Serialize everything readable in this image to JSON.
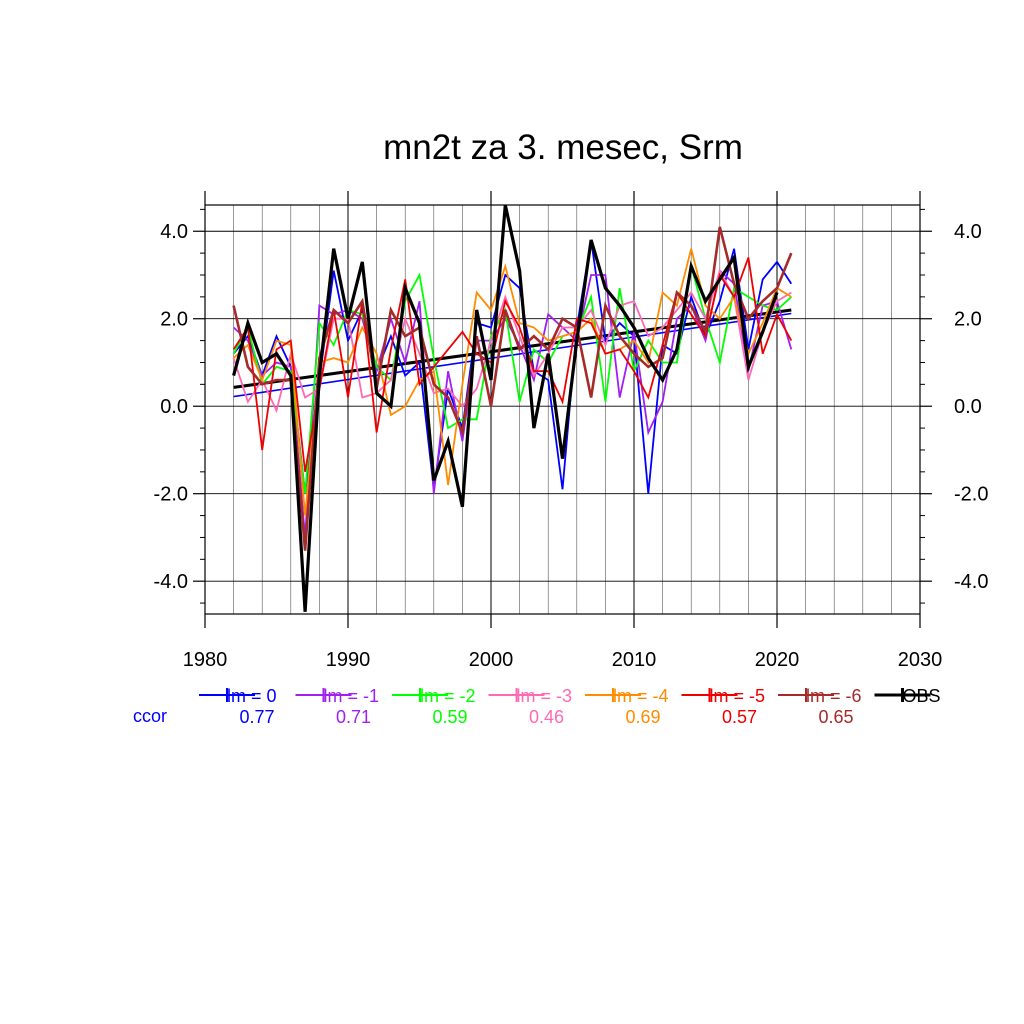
{
  "chart_data": {
    "type": "line",
    "title": "mn2t za 3. mesec, Srm",
    "xlabel": "",
    "ylabel": "",
    "xlim": [
      1980,
      2030
    ],
    "ylim": [
      -4.75,
      4.6
    ],
    "x_ticks": [
      1980,
      1990,
      2000,
      2010,
      2020,
      2030
    ],
    "y_ticks": [
      -4,
      -2,
      0,
      2,
      4
    ],
    "x_tick_labels": [
      "1980",
      "1990",
      "2000",
      "2010",
      "2020",
      "2030"
    ],
    "y_tick_labels": [
      "-4.0",
      "-2.0",
      "0.0",
      "2.0",
      "4.0"
    ],
    "grid": true,
    "legend_position": "bottom",
    "ccor_label": "ccor",
    "x": [
      1982,
      1983,
      1984,
      1985,
      1986,
      1987,
      1988,
      1989,
      1990,
      1991,
      1992,
      1993,
      1994,
      1995,
      1996,
      1997,
      1998,
      1999,
      2000,
      2001,
      2002,
      2003,
      2004,
      2005,
      2006,
      2007,
      2008,
      2009,
      2010,
      2011,
      2012,
      2013,
      2014,
      2015,
      2016,
      2017,
      2018,
      2019,
      2020,
      2021
    ],
    "series": [
      {
        "name": "lm = 0",
        "color": "#0000ff",
        "width": 1.8,
        "ccor": "0.77",
        "values": [
          1.2,
          1.6,
          0.7,
          1.6,
          0.9,
          -2.0,
          0.6,
          3.1,
          1.5,
          2.2,
          0.8,
          1.6,
          0.7,
          1.0,
          -1.9,
          0.4,
          -0.5,
          1.9,
          1.8,
          3.0,
          2.7,
          0.8,
          0.6,
          -1.9,
          1.8,
          3.8,
          1.5,
          1.9,
          1.6,
          -2.0,
          1.4,
          1.2,
          2.5,
          1.6,
          2.4,
          3.6,
          1.3,
          2.9,
          3.3,
          2.8
        ],
        "trend": [
          0.22,
          2.12
        ]
      },
      {
        "name": "lm = -1",
        "color": "#a020f0",
        "width": 1.8,
        "ccor": "0.71",
        "values": [
          1.8,
          1.5,
          0.7,
          1.0,
          0.9,
          -3.0,
          2.3,
          2.1,
          2.2,
          2.0,
          0.8,
          2.0,
          1.0,
          2.4,
          -2.0,
          0.8,
          -0.8,
          1.5,
          1.5,
          2.0,
          1.4,
          0.6,
          2.1,
          1.8,
          1.5,
          3.0,
          3.0,
          0.2,
          1.7,
          -0.6,
          0.1,
          2.0,
          2.3,
          1.5,
          3.1,
          2.8,
          0.8,
          2.3,
          2.4,
          1.3
        ],
        "trend": null
      },
      {
        "name": "lm = -2",
        "color": "#00ff00",
        "width": 1.8,
        "ccor": "0.59",
        "values": [
          1.2,
          1.8,
          0.5,
          0.9,
          0.8,
          -2.0,
          1.9,
          1.4,
          2.2,
          2.1,
          0.9,
          0.6,
          2.4,
          3.0,
          1.1,
          -0.5,
          -0.3,
          -0.3,
          1.6,
          2.2,
          0.1,
          1.3,
          1.0,
          1.6,
          1.7,
          2.5,
          0.1,
          2.7,
          0.8,
          1.5,
          1.0,
          1.0,
          3.2,
          2.0,
          1.0,
          2.7,
          2.5,
          2.3,
          2.2,
          2.5
        ],
        "trend": null
      },
      {
        "name": "lm = -3",
        "color": "#ff69b4",
        "width": 1.8,
        "ccor": "0.46",
        "values": [
          1.1,
          0.1,
          0.6,
          -0.1,
          1.2,
          0.2,
          0.4,
          2.0,
          2.0,
          0.2,
          0.3,
          0.6,
          2.0,
          1.2,
          0.3,
          0.4,
          0.0,
          0.4,
          1.5,
          2.5,
          1.6,
          0.7,
          1.2,
          1.8,
          1.8,
          2.2,
          1.4,
          2.3,
          2.4,
          1.6,
          1.8,
          2.2,
          2.6,
          2.0,
          3.1,
          2.5,
          0.6,
          1.7,
          2.4,
          2.6
        ],
        "trend": null
      },
      {
        "name": "lm = -4",
        "color": "#ff8c00",
        "width": 1.8,
        "ccor": "0.69",
        "values": [
          1.1,
          1.4,
          0.6,
          1.5,
          1.4,
          -2.5,
          1.0,
          1.1,
          1.0,
          1.8,
          1.2,
          -0.2,
          0.0,
          0.6,
          0.8,
          -1.8,
          0.5,
          2.6,
          2.2,
          3.2,
          1.9,
          1.8,
          1.5,
          1.6,
          1.7,
          2.0,
          1.2,
          1.3,
          1.5,
          1.0,
          2.6,
          2.3,
          3.6,
          2.3,
          2.0,
          2.5,
          1.2,
          1.9,
          2.7,
          2.5
        ],
        "trend": null
      },
      {
        "name": "lm = -5",
        "color": "#ee0000",
        "width": 1.8,
        "ccor": "0.57",
        "values": [
          1.3,
          1.8,
          -1.0,
          1.3,
          1.5,
          -1.5,
          0.4,
          2.2,
          0.2,
          2.4,
          -0.6,
          1.3,
          2.9,
          0.5,
          0.9,
          1.3,
          1.7,
          1.2,
          1.0,
          2.4,
          1.8,
          0.8,
          0.8,
          0.1,
          2.0,
          1.9,
          1.2,
          1.3,
          0.8,
          0.2,
          1.4,
          2.6,
          2.1,
          1.6,
          3.0,
          2.5,
          3.4,
          1.2,
          2.1,
          1.5
        ],
        "trend": null
      },
      {
        "name": "lm = -6",
        "color": "#a52a2a",
        "width": 2.6,
        "ccor": "0.65",
        "values": [
          2.3,
          0.9,
          0.5,
          0.6,
          0.6,
          -3.3,
          1.1,
          2.2,
          1.9,
          2.4,
          0.4,
          2.2,
          1.6,
          1.8,
          0.5,
          0.2,
          -0.6,
          1.6,
          0.0,
          2.2,
          1.3,
          1.6,
          1.3,
          2.0,
          1.8,
          0.2,
          2.3,
          1.6,
          1.2,
          0.9,
          1.1,
          2.6,
          2.3,
          1.7,
          4.1,
          2.8,
          2.0,
          2.4,
          2.7,
          3.5
        ],
        "trend": null
      },
      {
        "name": "OBS",
        "color": "#000000",
        "width": 3.2,
        "ccor": "",
        "values": [
          0.7,
          1.9,
          1.0,
          1.2,
          0.7,
          -4.7,
          0.7,
          3.6,
          2.0,
          3.3,
          0.3,
          0.0,
          2.7,
          1.9,
          -1.7,
          -0.8,
          -2.3,
          2.2,
          0.6,
          4.6,
          3.1,
          -0.5,
          1.2,
          -1.2,
          1.5,
          3.8,
          2.7,
          2.3,
          1.8,
          1.1,
          0.6,
          1.3,
          3.2,
          2.4,
          2.9,
          3.4,
          0.9,
          1.7,
          2.6,
          null
        ],
        "trend": [
          0.43,
          2.2
        ]
      }
    ]
  }
}
